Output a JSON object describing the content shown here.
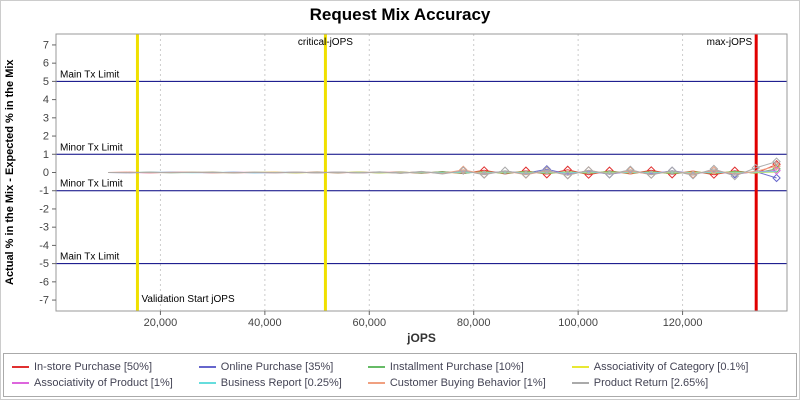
{
  "chart_data": {
    "type": "line",
    "title": "Request Mix Accuracy",
    "xlabel": "jOPS",
    "ylabel": "Actual % in the Mix - Expected % in the Mix",
    "xlim": [
      0,
      140000
    ],
    "ylim": [
      -7.6,
      7.6
    ],
    "x_ticks": [
      20000,
      40000,
      60000,
      80000,
      100000,
      120000
    ],
    "y_ticks": [
      -7,
      -6,
      -5,
      -4,
      -3,
      -2,
      -1,
      0,
      1,
      2,
      3,
      4,
      5,
      6,
      7
    ],
    "grid": "vertical-dotted",
    "legend_position": "bottom",
    "colors": {
      "grid": "#cccccc",
      "plot_border": "#999999",
      "tick_text": "#444444",
      "limit_line": "#000080",
      "validation_line": "#f0e000",
      "critical_line": "#f0e000",
      "max_line": "#e00000"
    },
    "limits": [
      {
        "y": 5,
        "label": "Main Tx Limit"
      },
      {
        "y": 1,
        "label": "Minor Tx Limit"
      },
      {
        "y": -1,
        "label": "Minor Tx Limit"
      },
      {
        "y": -5,
        "label": "Main Tx Limit"
      }
    ],
    "vlines": [
      {
        "x": 15600,
        "label": "Validation Start jOPS",
        "color": "#f0e000",
        "label_pos": "bottom-right"
      },
      {
        "x": 51600,
        "label": "critical-jOPS",
        "color": "#f0e000",
        "label_pos": "top-center"
      },
      {
        "x": 134100,
        "label": "max-jOPS",
        "color": "#e00000",
        "label_pos": "top-left"
      }
    ],
    "x": [
      10000,
      14000,
      18000,
      22000,
      26000,
      30000,
      34000,
      38000,
      42000,
      46000,
      50000,
      54000,
      58000,
      62000,
      66000,
      70000,
      74000,
      78000,
      82000,
      86000,
      90000,
      94000,
      98000,
      102000,
      106000,
      110000,
      114000,
      118000,
      122000,
      126000,
      130000,
      134000,
      138000
    ],
    "series": [
      {
        "name": "In-store Purchase [50%]",
        "color": "#e03030",
        "values": [
          0,
          0.01,
          -0.01,
          0.01,
          0,
          0.01,
          -0.01,
          0,
          0.01,
          -0.01,
          0.02,
          -0.02,
          0.02,
          -0.01,
          0.03,
          -0.04,
          0.05,
          -0.06,
          0.12,
          -0.08,
          0.1,
          -0.1,
          0.15,
          -0.12,
          0.1,
          -0.08,
          0.12,
          -0.1,
          0.08,
          -0.12,
          0.1,
          -0.05,
          0.45
        ]
      },
      {
        "name": "Online Purchase [35%]",
        "color": "#6666cc",
        "values": [
          0,
          -0.01,
          0.01,
          0,
          0.01,
          -0.01,
          0.01,
          -0.01,
          0,
          0.01,
          -0.01,
          0.02,
          -0.02,
          0.01,
          -0.02,
          0.03,
          -0.03,
          0.05,
          -0.05,
          0.06,
          -0.04,
          0.18,
          -0.08,
          0.08,
          -0.1,
          0.06,
          -0.08,
          0.1,
          -0.06,
          0.08,
          -0.1,
          0.05,
          -0.3
        ]
      },
      {
        "name": "Installment Purchase [10%]",
        "color": "#66bb66",
        "values": [
          0,
          0,
          0.01,
          -0.01,
          0,
          0.01,
          -0.01,
          0.01,
          0,
          -0.01,
          0.01,
          -0.01,
          0.02,
          -0.02,
          0.02,
          -0.03,
          0.04,
          -0.04,
          0.05,
          -0.05,
          0.06,
          -0.06,
          0.05,
          -0.05,
          0.06,
          -0.04,
          0.05,
          -0.06,
          0.04,
          -0.05,
          0.06,
          -0.03,
          0.2
        ]
      },
      {
        "name": "Associativity of Category [0.1%]",
        "color": "#e8e833",
        "values": [
          0,
          0,
          0,
          0,
          0.01,
          -0.01,
          0,
          0,
          0.01,
          -0.01,
          0,
          0,
          0.01,
          -0.01,
          0,
          0.01,
          -0.01,
          0,
          0.01,
          -0.01,
          0.01,
          -0.01,
          0.01,
          -0.01,
          0.01,
          -0.01,
          0.01,
          -0.01,
          0.01,
          -0.01,
          0.01,
          -0.01,
          0.02
        ]
      },
      {
        "name": "Associativity of Product [1%]",
        "color": "#dd66dd",
        "values": [
          0,
          0,
          -0.01,
          0.01,
          0,
          -0.01,
          0.01,
          0,
          -0.01,
          0.01,
          -0.01,
          0.01,
          -0.02,
          0.02,
          -0.02,
          0.03,
          -0.03,
          0.04,
          -0.04,
          0.04,
          -0.05,
          0.05,
          -0.04,
          0.05,
          -0.05,
          0.04,
          -0.04,
          0.05,
          -0.05,
          0.04,
          -0.04,
          0.03,
          0.1
        ]
      },
      {
        "name": "Business Report [0.25%]",
        "color": "#66dddd",
        "values": [
          0,
          0,
          0,
          0.01,
          -0.01,
          0,
          0.01,
          -0.01,
          0,
          0.01,
          -0.01,
          0.01,
          -0.01,
          0.01,
          -0.02,
          0.02,
          -0.02,
          0.02,
          -0.02,
          0.03,
          -0.03,
          0.02,
          -0.02,
          0.03,
          -0.03,
          0.02,
          -0.02,
          0.03,
          -0.03,
          0.02,
          -0.02,
          0.02,
          0.05
        ]
      },
      {
        "name": "Customer Buying Behavior [1%]",
        "color": "#f0a080",
        "values": [
          0,
          0.01,
          -0.01,
          0,
          0.01,
          -0.01,
          0,
          0.01,
          -0.01,
          0.02,
          -0.02,
          0.02,
          -0.03,
          0.03,
          -0.04,
          0.05,
          -0.06,
          0.15,
          -0.1,
          0.08,
          -0.12,
          0.1,
          -0.15,
          0.12,
          -0.08,
          0.1,
          -0.12,
          0.08,
          -0.1,
          0.12,
          -0.08,
          0.06,
          0.35
        ]
      },
      {
        "name": "Product Return [2.65%]",
        "color": "#aaaaaa",
        "values": [
          0,
          -0.01,
          0.01,
          -0.01,
          0.01,
          0,
          -0.01,
          0.01,
          -0.02,
          0.02,
          -0.02,
          0.03,
          -0.03,
          0.04,
          -0.05,
          0.06,
          -0.08,
          0.1,
          -0.12,
          0.1,
          -0.1,
          0.12,
          -0.15,
          0.12,
          -0.1,
          0.15,
          -0.12,
          0.1,
          -0.15,
          0.2,
          -0.2,
          0.25,
          0.6
        ]
      }
    ]
  }
}
